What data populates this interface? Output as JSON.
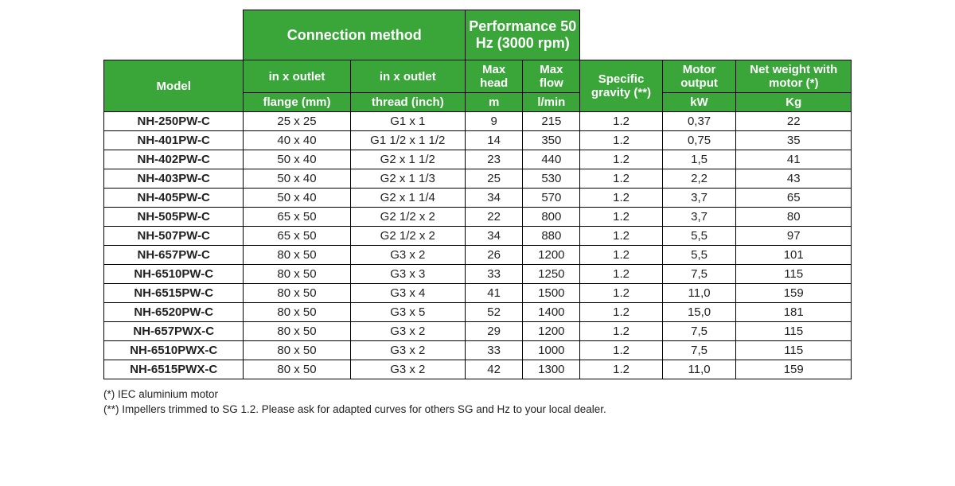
{
  "table": {
    "header_bg": "#3aa63a",
    "header_fg": "#ffffff",
    "border_color": "#000000",
    "col_widths_pct": [
      17,
      13,
      14,
      7,
      7,
      10,
      9,
      14
    ],
    "group_headers": {
      "model": "Model",
      "connection": "Connection method",
      "performance": "Performance 50 Hz (3000 rpm)"
    },
    "sub_headers": {
      "in_outlet_1": "in x outlet",
      "in_outlet_2": "in x outlet",
      "max_head": "Max head",
      "max_flow": "Max flow",
      "specific_gravity": "Specific gravity (**)",
      "motor_output": "Motor output",
      "net_weight": "Net weight with motor (*)"
    },
    "unit_row": {
      "flange": "flange (mm)",
      "thread": "thread (inch)",
      "m": "m",
      "lmin": "l/min",
      "sg": "",
      "kw": "kW",
      "kg": "Kg"
    },
    "rows": [
      {
        "model": "NH-250PW-C",
        "flange": "25 x 25",
        "thread": "G1 x 1",
        "head": "9",
        "flow": "215",
        "sg": "1.2",
        "kw": "0,37",
        "kg": "22"
      },
      {
        "model": "NH-401PW-C",
        "flange": "40 x 40",
        "thread": "G1 1/2 x 1 1/2",
        "head": "14",
        "flow": "350",
        "sg": "1.2",
        "kw": "0,75",
        "kg": "35"
      },
      {
        "model": "NH-402PW-C",
        "flange": "50 x 40",
        "thread": "G2 x 1 1/2",
        "head": "23",
        "flow": "440",
        "sg": "1.2",
        "kw": "1,5",
        "kg": "41"
      },
      {
        "model": "NH-403PW-C",
        "flange": "50 x 40",
        "thread": "G2 x 1 1/3",
        "head": "25",
        "flow": "530",
        "sg": "1.2",
        "kw": "2,2",
        "kg": "43"
      },
      {
        "model": "NH-405PW-C",
        "flange": "50 x 40",
        "thread": "G2 x 1 1/4",
        "head": "34",
        "flow": "570",
        "sg": "1.2",
        "kw": "3,7",
        "kg": "65"
      },
      {
        "model": "NH-505PW-C",
        "flange": "65 x 50",
        "thread": "G2 1/2 x 2",
        "head": "22",
        "flow": "800",
        "sg": "1.2",
        "kw": "3,7",
        "kg": "80"
      },
      {
        "model": "NH-507PW-C",
        "flange": "65 x 50",
        "thread": "G2 1/2 x 2",
        "head": "34",
        "flow": "880",
        "sg": "1.2",
        "kw": "5,5",
        "kg": "97"
      },
      {
        "model": "NH-657PW-C",
        "flange": "80 x 50",
        "thread": "G3 x 2",
        "head": "26",
        "flow": "1200",
        "sg": "1.2",
        "kw": "5,5",
        "kg": "101"
      },
      {
        "model": "NH-6510PW-C",
        "flange": "80 x 50",
        "thread": "G3 x 3",
        "head": "33",
        "flow": "1250",
        "sg": "1.2",
        "kw": "7,5",
        "kg": "115"
      },
      {
        "model": "NH-6515PW-C",
        "flange": "80 x 50",
        "thread": "G3 x 4",
        "head": "41",
        "flow": "1500",
        "sg": "1.2",
        "kw": "11,0",
        "kg": "159"
      },
      {
        "model": "NH-6520PW-C",
        "flange": "80 x 50",
        "thread": "G3 x 5",
        "head": "52",
        "flow": "1400",
        "sg": "1.2",
        "kw": "15,0",
        "kg": "181"
      },
      {
        "model": "NH-657PWX-C",
        "flange": "80 x 50",
        "thread": "G3 x 2",
        "head": "29",
        "flow": "1200",
        "sg": "1.2",
        "kw": "7,5",
        "kg": "115"
      },
      {
        "model": "NH-6510PWX-C",
        "flange": "80 x 50",
        "thread": "G3 x 2",
        "head": "33",
        "flow": "1000",
        "sg": "1.2",
        "kw": "7,5",
        "kg": "115"
      },
      {
        "model": "NH-6515PWX-C",
        "flange": "80 x 50",
        "thread": "G3 x 2",
        "head": "42",
        "flow": "1300",
        "sg": "1.2",
        "kw": "11,0",
        "kg": "159"
      }
    ]
  },
  "footnotes": {
    "line1": "(*) IEC aluminium motor",
    "line2": "(**) Impellers trimmed to SG 1.2. Please ask for adapted curves for others SG and Hz to your local dealer."
  }
}
